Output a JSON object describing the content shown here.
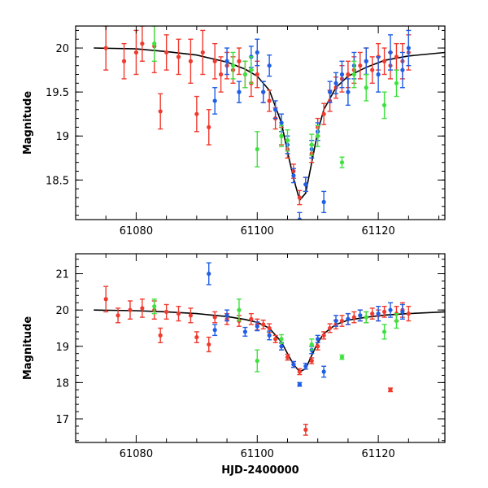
{
  "chart_data": [
    {
      "type": "scatter",
      "panel": "top",
      "title": "",
      "xlabel": "",
      "ylabel": "Magnitude",
      "xlim": [
        61070,
        61131
      ],
      "ylim": [
        20.25,
        18.05
      ],
      "y_inverted": true,
      "grid": false,
      "xticks": [
        "61080",
        "61100",
        "61120"
      ],
      "yticks": [
        "18.5",
        "19",
        "19.5",
        "20"
      ],
      "model_curve": {
        "name": "model fit",
        "color": "#000000",
        "x": [
          61073,
          61080,
          61085,
          61090,
          61095,
          61098,
          61100,
          61102,
          61104,
          61105,
          61106,
          61107,
          61108,
          61109,
          61110,
          61111,
          61113,
          61115,
          61118,
          61121,
          61125,
          61131
        ],
        "y": [
          20.0,
          19.99,
          19.96,
          19.92,
          19.84,
          19.76,
          19.68,
          19.52,
          19.15,
          18.82,
          18.52,
          18.27,
          18.35,
          18.7,
          19.05,
          19.3,
          19.55,
          19.68,
          19.78,
          19.86,
          19.91,
          19.95
        ]
      },
      "series": [
        {
          "name": "red",
          "color": "#f03a2e",
          "x": [
            61075,
            61078,
            61080,
            61081,
            61083,
            61084,
            61085,
            61087,
            61089,
            61090,
            61091,
            61092,
            61093,
            61094,
            61095,
            61096,
            61097,
            61098,
            61099,
            61100,
            61101,
            61102,
            61103,
            61104,
            61105,
            61106,
            61107,
            61108,
            61109,
            61110,
            61111,
            61112,
            61113,
            61114,
            61115,
            61116,
            61117,
            61118,
            61119,
            61120,
            61121,
            61122,
            61123,
            61124,
            61125
          ],
          "y": [
            20.0,
            19.85,
            19.95,
            20.05,
            20.02,
            19.28,
            19.95,
            19.9,
            19.85,
            19.25,
            19.95,
            19.1,
            19.85,
            19.7,
            19.8,
            19.75,
            19.85,
            19.7,
            19.6,
            19.7,
            19.5,
            19.4,
            19.2,
            19.0,
            18.85,
            18.6,
            18.3,
            18.45,
            18.8,
            19.1,
            19.25,
            19.4,
            19.55,
            19.65,
            19.7,
            19.75,
            19.8,
            19.85,
            19.75,
            19.9,
            19.85,
            19.8,
            19.9,
            19.85,
            19.95
          ],
          "err": [
            0.25,
            0.2,
            0.25,
            0.2,
            0.3,
            0.2,
            0.2,
            0.2,
            0.25,
            0.2,
            0.25,
            0.2,
            0.2,
            0.2,
            0.15,
            0.15,
            0.15,
            0.15,
            0.15,
            0.15,
            0.12,
            0.12,
            0.12,
            0.1,
            0.1,
            0.08,
            0.08,
            0.08,
            0.1,
            0.1,
            0.12,
            0.12,
            0.12,
            0.15,
            0.15,
            0.15,
            0.15,
            0.15,
            0.15,
            0.15,
            0.15,
            0.15,
            0.15,
            0.2,
            0.2
          ]
        },
        {
          "name": "blue",
          "color": "#1f5ee6",
          "x": [
            61093,
            61095,
            61097,
            61099,
            61100,
            61101,
            61102,
            61103,
            61104,
            61105,
            61106,
            61107,
            61108,
            61109,
            61110,
            61111,
            61112,
            61113,
            61114,
            61115,
            61116,
            61118,
            61120,
            61122,
            61124,
            61125
          ],
          "y": [
            19.4,
            19.85,
            19.5,
            19.9,
            19.95,
            19.5,
            19.8,
            19.3,
            19.15,
            18.9,
            18.55,
            18.05,
            18.45,
            18.85,
            19.05,
            18.25,
            19.5,
            19.6,
            19.7,
            19.5,
            19.8,
            19.85,
            19.7,
            19.95,
            19.75,
            20.0
          ],
          "err": [
            0.15,
            0.15,
            0.12,
            0.12,
            0.15,
            0.12,
            0.12,
            0.1,
            0.1,
            0.1,
            0.08,
            0.08,
            0.08,
            0.1,
            0.1,
            0.12,
            0.12,
            0.12,
            0.15,
            0.15,
            0.15,
            0.15,
            0.2,
            0.2,
            0.2,
            0.2
          ]
        },
        {
          "name": "green",
          "color": "#3ee23e",
          "x": [
            61083,
            61096,
            61098,
            61099,
            61100,
            61104,
            61105,
            61109,
            61110,
            61114,
            61116,
            61118,
            61121,
            61123
          ],
          "y": [
            20.05,
            19.8,
            19.7,
            19.75,
            18.85,
            19.0,
            18.95,
            18.9,
            19.0,
            18.7,
            19.7,
            19.55,
            19.35,
            19.6
          ],
          "err": [
            0.2,
            0.15,
            0.15,
            0.15,
            0.2,
            0.12,
            0.12,
            0.12,
            0.12,
            0.06,
            0.15,
            0.15,
            0.15,
            0.15
          ]
        }
      ]
    },
    {
      "type": "scatter",
      "panel": "bottom",
      "title": "",
      "xlabel": "HJD-2400000",
      "ylabel": "Magnitude",
      "xlim": [
        61070,
        61131
      ],
      "ylim": [
        21.55,
        16.35
      ],
      "y_inverted": true,
      "grid": false,
      "xticks": [
        "61080",
        "61100",
        "61120"
      ],
      "yticks": [
        "17",
        "18",
        "19",
        "20",
        "21"
      ],
      "model_curve": {
        "name": "model fit",
        "color": "#000000",
        "x": [
          61073,
          61080,
          61085,
          61090,
          61095,
          61098,
          61100,
          61102,
          61104,
          61105,
          61106,
          61107,
          61108,
          61109,
          61110,
          61111,
          61113,
          61115,
          61118,
          61121,
          61125,
          61131
        ],
        "y": [
          20.0,
          19.98,
          19.95,
          19.9,
          19.82,
          19.74,
          19.66,
          19.5,
          19.12,
          18.8,
          18.5,
          18.3,
          18.38,
          18.75,
          19.1,
          19.35,
          19.6,
          19.72,
          19.8,
          19.86,
          19.9,
          19.95
        ]
      },
      "series": [
        {
          "name": "red",
          "color": "#f03a2e",
          "x": [
            61075,
            61077,
            61079,
            61081,
            61083,
            61084,
            61085,
            61087,
            61089,
            61090,
            61092,
            61093,
            61095,
            61097,
            61099,
            61100,
            61101,
            61102,
            61103,
            61104,
            61105,
            61106,
            61107,
            61108,
            61109,
            61110,
            61111,
            61112,
            61113,
            61114,
            61115,
            61116,
            61117,
            61118,
            61119,
            61120,
            61121,
            61122,
            61123,
            61124,
            61125
          ],
          "y": [
            20.3,
            19.85,
            20.0,
            20.05,
            20.0,
            19.3,
            19.95,
            19.9,
            19.85,
            19.25,
            19.05,
            19.8,
            19.75,
            19.7,
            19.75,
            19.6,
            19.6,
            19.5,
            19.2,
            19.0,
            18.7,
            18.5,
            18.3,
            16.7,
            18.6,
            19.0,
            19.3,
            19.5,
            19.6,
            19.7,
            19.75,
            19.8,
            19.85,
            19.8,
            19.9,
            19.85,
            19.95,
            17.8,
            19.9,
            20.0,
            19.9
          ],
          "err": [
            0.35,
            0.2,
            0.25,
            0.25,
            0.25,
            0.2,
            0.2,
            0.2,
            0.2,
            0.15,
            0.2,
            0.15,
            0.15,
            0.15,
            0.15,
            0.15,
            0.12,
            0.12,
            0.1,
            0.1,
            0.08,
            0.08,
            0.08,
            0.15,
            0.08,
            0.1,
            0.1,
            0.12,
            0.12,
            0.15,
            0.15,
            0.15,
            0.15,
            0.15,
            0.15,
            0.15,
            0.15,
            0.05,
            0.2,
            0.2,
            0.2
          ]
        },
        {
          "name": "blue",
          "color": "#1f5ee6",
          "x": [
            61092,
            61093,
            61095,
            61098,
            61100,
            61102,
            61104,
            61106,
            61107,
            61108,
            61109,
            61110,
            61111,
            61113,
            61115,
            61117,
            61120,
            61122,
            61124
          ],
          "y": [
            21.0,
            19.45,
            19.85,
            19.4,
            19.55,
            19.3,
            19.0,
            18.5,
            17.95,
            18.45,
            18.9,
            19.2,
            18.3,
            19.7,
            19.75,
            19.85,
            19.9,
            20.0,
            19.95
          ],
          "err": [
            0.3,
            0.15,
            0.15,
            0.12,
            0.12,
            0.12,
            0.1,
            0.08,
            0.05,
            0.08,
            0.1,
            0.1,
            0.15,
            0.15,
            0.15,
            0.15,
            0.2,
            0.2,
            0.2
          ]
        },
        {
          "name": "green",
          "color": "#3ee23e",
          "x": [
            61083,
            61097,
            61100,
            61104,
            61109,
            61114,
            61118,
            61121,
            61123
          ],
          "y": [
            20.1,
            20.0,
            18.6,
            19.2,
            19.05,
            18.7,
            19.8,
            19.4,
            19.7
          ],
          "err": [
            0.2,
            0.3,
            0.3,
            0.12,
            0.15,
            0.06,
            0.15,
            0.2,
            0.2
          ]
        }
      ]
    }
  ]
}
